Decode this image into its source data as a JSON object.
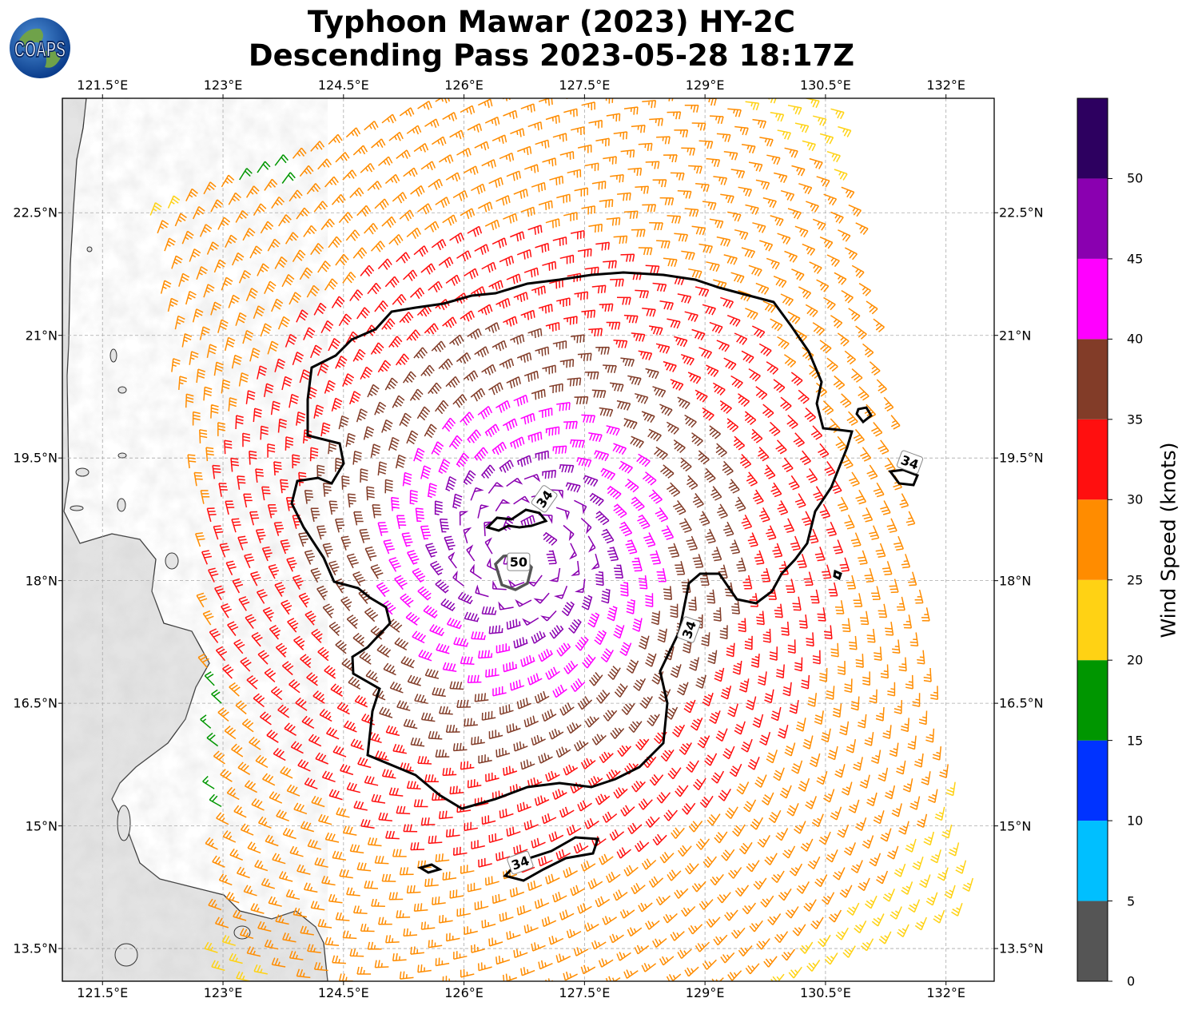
{
  "title": {
    "line1": "Typhoon Mawar (2023) HY-2C",
    "line2": "Descending Pass 2023-05-28 18:17Z"
  },
  "logo": {
    "text": "COAPS",
    "icon": "globe-icon"
  },
  "map": {
    "lon_range": [
      121.0,
      132.6
    ],
    "lat_range": [
      13.1,
      23.9
    ],
    "lon_ticks": [
      "121.5°E",
      "123°E",
      "124.5°E",
      "126°E",
      "127.5°E",
      "129°E",
      "130.5°E",
      "132°E"
    ],
    "lat_ticks": [
      "22.5°N",
      "21°N",
      "19.5°N",
      "18°N",
      "16.5°N",
      "15°N",
      "13.5°N"
    ],
    "grid": true,
    "storm_center": {
      "lon": 126.75,
      "lat": 18.4
    },
    "land": "Luzon, Philippines (left edge)",
    "contours": [
      {
        "value": "34",
        "label_lon": 128.8,
        "label_lat": 17.4
      },
      {
        "value": "34",
        "label_lon": 131.55,
        "label_lat": 19.45
      },
      {
        "value": "34",
        "label_lon": 127.0,
        "label_lat": 19.0
      },
      {
        "value": "34",
        "label_lon": 126.7,
        "label_lat": 14.55
      },
      {
        "value": "50",
        "label_lon": 126.68,
        "label_lat": 18.23
      }
    ]
  },
  "colorbar": {
    "title": "Wind Speed (knots)",
    "ticks": [
      "0",
      "5",
      "10",
      "15",
      "20",
      "25",
      "30",
      "35",
      "40",
      "45",
      "50"
    ],
    "bins": [
      {
        "min": 0,
        "max": 5,
        "color": "#555555"
      },
      {
        "min": 5,
        "max": 10,
        "color": "#00bfff"
      },
      {
        "min": 10,
        "max": 15,
        "color": "#0033ff"
      },
      {
        "min": 15,
        "max": 20,
        "color": "#009600"
      },
      {
        "min": 20,
        "max": 25,
        "color": "#ffd214"
      },
      {
        "min": 25,
        "max": 30,
        "color": "#ff8c00"
      },
      {
        "min": 30,
        "max": 35,
        "color": "#ff0f0f"
      },
      {
        "min": 35,
        "max": 40,
        "color": "#823c28"
      },
      {
        "min": 40,
        "max": 45,
        "color": "#ff00ff"
      },
      {
        "min": 45,
        "max": 50,
        "color": "#8a00b0"
      },
      {
        "min": 50,
        "max": 55,
        "color": "#2d0060"
      }
    ]
  }
}
